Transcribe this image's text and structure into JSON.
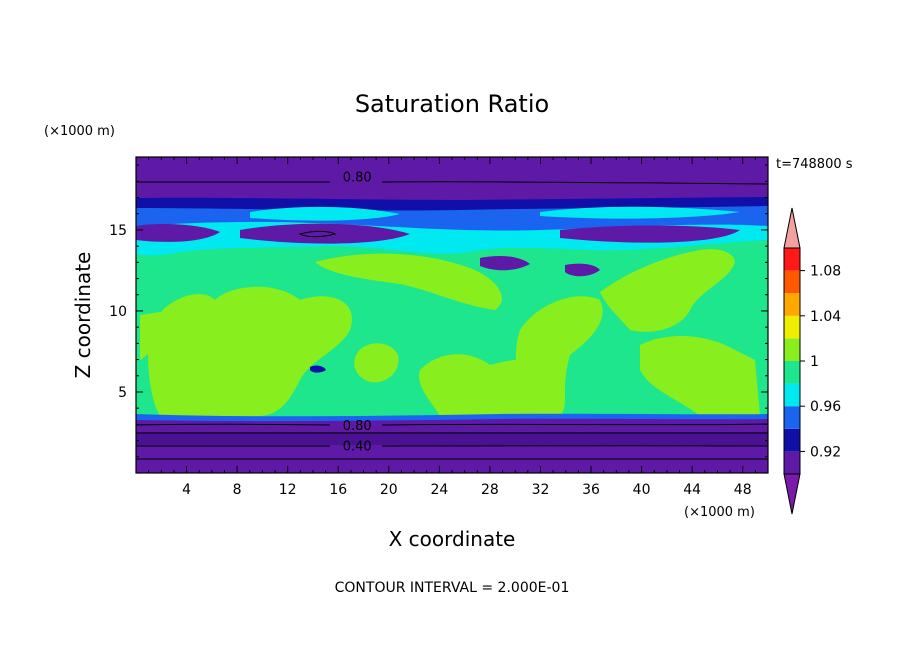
{
  "chart_data": {
    "type": "heatmap",
    "title": "Saturation Ratio",
    "xlabel": "X coordinate",
    "ylabel": "Z coordinate",
    "x_unit": "(×1000 m)",
    "y_unit": "(×1000 m)",
    "time_label": "t=748800 s",
    "contour_interval_label": "CONTOUR INTERVAL = 2.000E-01",
    "xlim": [
      0,
      50
    ],
    "ylim": [
      0,
      19.5
    ],
    "x_ticks": [
      4,
      8,
      12,
      16,
      20,
      24,
      28,
      32,
      36,
      40,
      44,
      48
    ],
    "y_ticks": [
      5,
      10,
      15
    ],
    "contour_labels": [
      {
        "text": "0.80",
        "x": 17.5,
        "z": 18.3
      },
      {
        "text": "0.80",
        "x": 17.5,
        "z": 2.95
      },
      {
        "text": "0.40",
        "x": 17.5,
        "z": 1.7
      }
    ],
    "colorbar": {
      "labels": [
        "1.08",
        "1.04",
        "1",
        "0.96",
        "0.92"
      ],
      "levels": [
        0.9,
        0.92,
        0.94,
        0.96,
        0.98,
        1.0,
        1.02,
        1.04,
        1.06,
        1.08,
        1.1
      ],
      "colors": [
        "#5e1aa6",
        "#1010a8",
        "#1a64f0",
        "#00e8f0",
        "#1ee68c",
        "#88ee1e",
        "#eeee00",
        "#ffa800",
        "#ff5800",
        "#ff1a1a"
      ],
      "under_color": "#7a1aa8",
      "over_color": "#f4a0a0"
    }
  }
}
